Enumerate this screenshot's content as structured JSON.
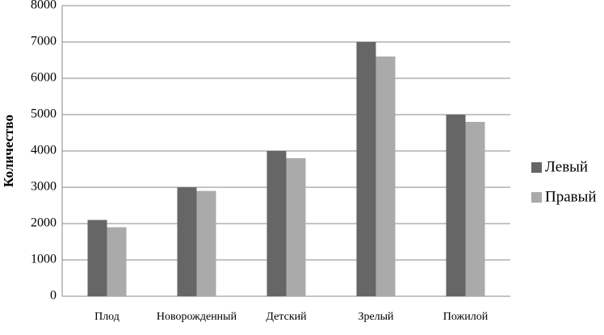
{
  "chart_data": {
    "type": "bar",
    "y_label": "Количество",
    "categories": [
      "Плод",
      "Новорожденный",
      "Детский",
      "Зрелый",
      "Пожилой"
    ],
    "series": [
      {
        "name": "Левый",
        "color": "#666666",
        "values": [
          2100,
          3000,
          4000,
          7000,
          5000
        ]
      },
      {
        "name": "Правый",
        "color": "#aaaaaa",
        "values": [
          1900,
          2900,
          3800,
          6600,
          4800
        ]
      }
    ],
    "ylim": [
      0,
      8000
    ],
    "yticks": [
      0,
      1000,
      2000,
      3000,
      4000,
      5000,
      6000,
      7000,
      8000
    ],
    "grid": true,
    "legend": "right"
  }
}
